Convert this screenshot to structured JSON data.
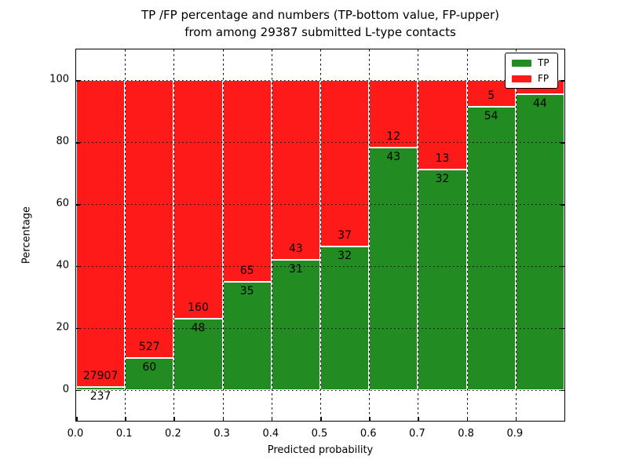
{
  "title": {
    "line1": "TP /FP percentage and numbers (TP-bottom value, FP-upper)",
    "line2": "from among 29387 submitted L-type contacts"
  },
  "chart_data": {
    "type": "bar",
    "stacked": true,
    "title": "TP /FP percentage and numbers (TP-bottom value, FP-upper) from among 29387 submitted L-type contacts",
    "xlabel": "Predicted probability",
    "ylabel": "Percentage",
    "xlim": [
      0.0,
      1.0
    ],
    "ylim": [
      -10,
      110
    ],
    "grid": true,
    "x_ticks": [
      0.0,
      0.1,
      0.2,
      0.3,
      0.4,
      0.5,
      0.6,
      0.7,
      0.8,
      0.9
    ],
    "x_tick_labels": [
      "0.0",
      "0.1",
      "0.2",
      "0.3",
      "0.4",
      "0.5",
      "0.6",
      "0.7",
      "0.8",
      "0.9"
    ],
    "y_ticks": [
      0,
      20,
      40,
      60,
      80,
      100
    ],
    "y_tick_labels": [
      "0",
      "20",
      "40",
      "60",
      "80",
      "100"
    ],
    "legend": {
      "position": "upper right",
      "items": [
        {
          "label": "TP",
          "color": "#228b22"
        },
        {
          "label": "FP",
          "color": "#ff1a1a"
        }
      ]
    },
    "colors": {
      "tp": "#228b22",
      "fp": "#ff1a1a",
      "bar_edge": "#ffffff"
    },
    "bins": [
      {
        "x_start": 0.0,
        "x_end": 0.1,
        "tp_count": 237,
        "fp_count": 27907,
        "tp_pct": 0.84,
        "fp_pct": 99.16,
        "tp_label": "237",
        "fp_label": "27907"
      },
      {
        "x_start": 0.1,
        "x_end": 0.2,
        "tp_count": 60,
        "fp_count": 527,
        "tp_pct": 10.22,
        "fp_pct": 89.78,
        "tp_label": "60",
        "fp_label": "527"
      },
      {
        "x_start": 0.2,
        "x_end": 0.3,
        "tp_count": 48,
        "fp_count": 160,
        "tp_pct": 23.08,
        "fp_pct": 76.92,
        "tp_label": "48",
        "fp_label": "160"
      },
      {
        "x_start": 0.3,
        "x_end": 0.4,
        "tp_count": 35,
        "fp_count": 65,
        "tp_pct": 35.0,
        "fp_pct": 65.0,
        "tp_label": "35",
        "fp_label": "65"
      },
      {
        "x_start": 0.4,
        "x_end": 0.5,
        "tp_count": 31,
        "fp_count": 43,
        "tp_pct": 41.89,
        "fp_pct": 58.11,
        "tp_label": "31",
        "fp_label": "43"
      },
      {
        "x_start": 0.5,
        "x_end": 0.6,
        "tp_count": 32,
        "fp_count": 37,
        "tp_pct": 46.38,
        "fp_pct": 53.62,
        "tp_label": "32",
        "fp_label": "37"
      },
      {
        "x_start": 0.6,
        "x_end": 0.7,
        "tp_count": 43,
        "fp_count": 12,
        "tp_pct": 78.18,
        "fp_pct": 21.82,
        "tp_label": "43",
        "fp_label": "12"
      },
      {
        "x_start": 0.7,
        "x_end": 0.8,
        "tp_count": 32,
        "fp_count": 13,
        "tp_pct": 71.11,
        "fp_pct": 28.89,
        "tp_label": "32",
        "fp_label": "13"
      },
      {
        "x_start": 0.8,
        "x_end": 0.9,
        "tp_count": 54,
        "fp_count": 5,
        "tp_pct": 91.53,
        "fp_pct": 8.47,
        "tp_label": "54",
        "fp_label": "5"
      },
      {
        "x_start": 0.9,
        "x_end": 1.0,
        "tp_count": 44,
        "fp_count": null,
        "tp_pct": 95.65,
        "fp_pct": 4.35,
        "tp_label": "44",
        "fp_label": ""
      }
    ]
  }
}
